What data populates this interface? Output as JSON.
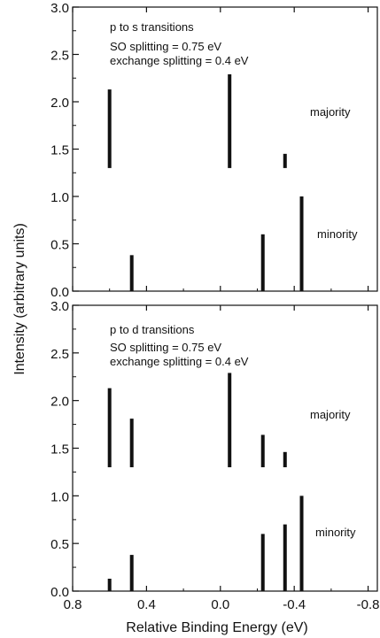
{
  "chart_data": {
    "type": "bar",
    "xlabel": "Relative Binding Energy (eV)",
    "ylabel": "Intensity (arbitrary units)",
    "xlim": [
      0.8,
      -0.85
    ],
    "x_ticks": [
      "0.8",
      "0.4",
      "0.0",
      "-0.4",
      "-0.8"
    ],
    "panels": [
      {
        "ylim": [
          0.0,
          3.0
        ],
        "y_ticks": [
          "0.0",
          "0.5",
          "1.0",
          "1.5",
          "2.0",
          "2.5",
          "3.0"
        ],
        "annotation_lines": [
          "p to s transitions",
          "SO splitting = 0.75 eV",
          "exchange splitting = 0.4 eV"
        ],
        "series": [
          {
            "name": "majority",
            "baseline": 1.3,
            "label_y": 1.9,
            "x": [
              0.6,
              -0.05,
              -0.35
            ],
            "values": [
              0.83,
              0.99,
              0.15
            ]
          },
          {
            "name": "minority",
            "baseline": 0.0,
            "label_y": 0.6,
            "x": [
              0.48,
              -0.23,
              -0.44
            ],
            "values": [
              0.38,
              0.6,
              1.0
            ]
          }
        ]
      },
      {
        "ylim": [
          0.0,
          3.0
        ],
        "y_ticks": [
          "0.0",
          "0.5",
          "1.0",
          "1.5",
          "2.0",
          "2.5",
          "3.0"
        ],
        "annotation_lines": [
          "p to d transitions",
          "SO splitting = 0.75 eV",
          "exchange splitting = 0.4 eV"
        ],
        "series": [
          {
            "name": "majority",
            "baseline": 1.3,
            "label_y": 1.9,
            "x": [
              0.6,
              0.48,
              -0.05,
              -0.23,
              -0.35
            ],
            "values": [
              0.83,
              0.51,
              0.99,
              0.34,
              0.16
            ]
          },
          {
            "name": "minority",
            "baseline": 0.0,
            "label_y": 0.6,
            "x": [
              0.6,
              0.48,
              -0.23,
              -0.35,
              -0.44
            ],
            "values": [
              0.13,
              0.38,
              0.6,
              0.7,
              1.0
            ]
          }
        ]
      }
    ]
  }
}
